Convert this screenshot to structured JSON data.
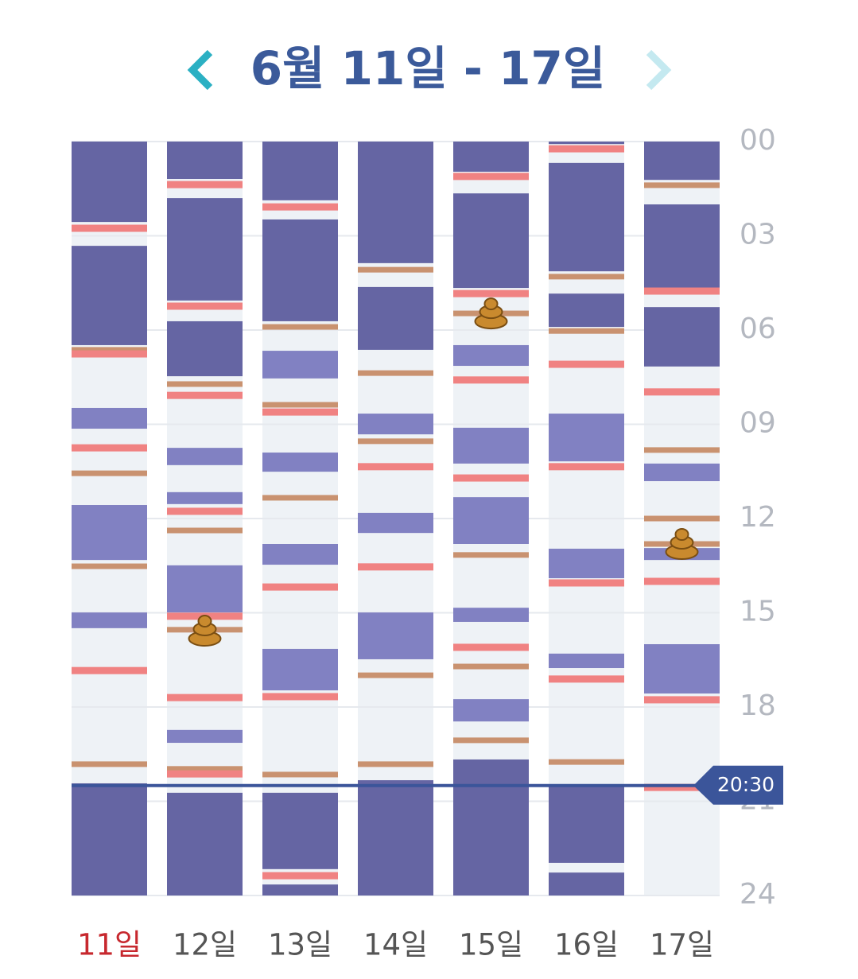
{
  "chart_data": {
    "type": "timeline",
    "title": "6월 11일 - 17일",
    "ylim": [
      0,
      24
    ],
    "yticks": [
      {
        "value": 0,
        "label": "00"
      },
      {
        "value": 3,
        "label": "03"
      },
      {
        "value": 6,
        "label": "06"
      },
      {
        "value": 9,
        "label": "09"
      },
      12,
      15,
      18,
      21,
      24
    ],
    "colors": {
      "dark": "#6565a3",
      "light": "#8181c2",
      "feed": "#f08282",
      "diaper": "#c99270",
      "poop": "#c98a2e",
      "empty": "#eef2f6"
    },
    "days": [
      {
        "label": "11일",
        "color": "#c7282e",
        "dark": [
          [
            0,
            2.56
          ],
          [
            3.32,
            6.48
          ],
          [
            20.43,
            24
          ]
        ],
        "light": [
          [
            8.48,
            9.14
          ],
          [
            11.57,
            13.32
          ],
          [
            14.99,
            15.49
          ]
        ],
        "feed": [
          2.76,
          6.76,
          9.75,
          16.84
        ],
        "diaper": [
          6.63,
          10.56,
          13.52,
          19.82
        ],
        "poop": []
      },
      {
        "label": "12일",
        "color": "#555555",
        "dark": [
          [
            0,
            1.19
          ],
          [
            1.8,
            5.06
          ],
          [
            5.72,
            7.47
          ],
          [
            20.73,
            24
          ]
        ],
        "light": [
          [
            9.75,
            10.3
          ],
          [
            11.16,
            11.54
          ],
          [
            13.49,
            14.99
          ],
          [
            18.73,
            19.14
          ]
        ],
        "feed": [
          1.37,
          5.24,
          8.08,
          11.77,
          15.11,
          17.7,
          20.13
        ],
        "diaper": [
          7.72,
          12.38,
          15.54,
          19.97
        ],
        "poop": [
          15.57
        ]
      },
      {
        "label": "13일",
        "color": "#555555",
        "dark": [
          [
            0,
            1.87
          ],
          [
            2.48,
            5.72
          ],
          [
            20.73,
            23.16
          ],
          [
            23.65,
            24
          ]
        ],
        "light": [
          [
            6.66,
            7.54
          ],
          [
            9.9,
            10.51
          ],
          [
            12.81,
            13.47
          ],
          [
            16.15,
            17.47
          ]
        ],
        "feed": [
          2.08,
          8.61,
          14.18,
          17.67,
          23.37
        ],
        "diaper": [
          5.9,
          8.38,
          11.34,
          20.15
        ],
        "poop": []
      },
      {
        "label": "14일",
        "color": "#555555",
        "dark": [
          [
            0,
            3.87
          ],
          [
            4.63,
            6.63
          ],
          [
            20.33,
            24
          ]
        ],
        "light": [
          [
            8.66,
            9.32
          ],
          [
            11.82,
            12.46
          ],
          [
            14.99,
            16.48
          ]
        ],
        "feed": [
          10.35,
          13.54
        ],
        "diaper": [
          4.08,
          7.37,
          9.54,
          16.99,
          19.82
        ],
        "poop": []
      },
      {
        "label": "15일",
        "color": "#555555",
        "dark": [
          [
            0,
            0.96
          ],
          [
            1.65,
            4.66
          ],
          [
            19.67,
            24
          ]
        ],
        "light": [
          [
            6.48,
            7.14
          ],
          [
            9.11,
            10.25
          ],
          [
            11.32,
            12.81
          ],
          [
            14.84,
            15.29
          ],
          [
            17.75,
            18.46
          ]
        ],
        "feed": [
          1.11,
          4.84,
          7.59,
          10.71,
          16.1
        ],
        "diaper": [
          5.47,
          13.16,
          16.71,
          19.06
        ],
        "poop": [
          5.47
        ]
      },
      {
        "label": "16일",
        "color": "#555555",
        "dark": [
          [
            0,
            0.08
          ],
          [
            0.68,
            4.13
          ],
          [
            4.84,
            5.9
          ],
          [
            20.48,
            22.96
          ],
          [
            23.27,
            24
          ]
        ],
        "light": [
          [
            8.66,
            10.18
          ],
          [
            12.96,
            13.9
          ],
          [
            16.3,
            16.76
          ]
        ],
        "feed": [
          0.23,
          7.09,
          10.35,
          14.05,
          17.11
        ],
        "diaper": [
          4.3,
          6.03,
          19.75
        ],
        "poop": []
      },
      {
        "label": "17일",
        "color": "#555555",
        "dark": [
          [
            0,
            1.22
          ],
          [
            2.0,
            4.66
          ],
          [
            5.27,
            7.16
          ]
        ],
        "light": [
          [
            10.25,
            10.81
          ],
          [
            12.94,
            13.32
          ],
          [
            16.0,
            17.57
          ]
        ],
        "feed": [
          4.76,
          7.97,
          14.0,
          17.77,
          20.56
        ],
        "diaper": [
          1.39,
          9.82,
          12.0,
          12.81
        ],
        "poop": [
          12.81
        ]
      }
    ],
    "now": {
      "value": 20.5,
      "label": "20:30",
      "color": "#3b559a"
    }
  }
}
